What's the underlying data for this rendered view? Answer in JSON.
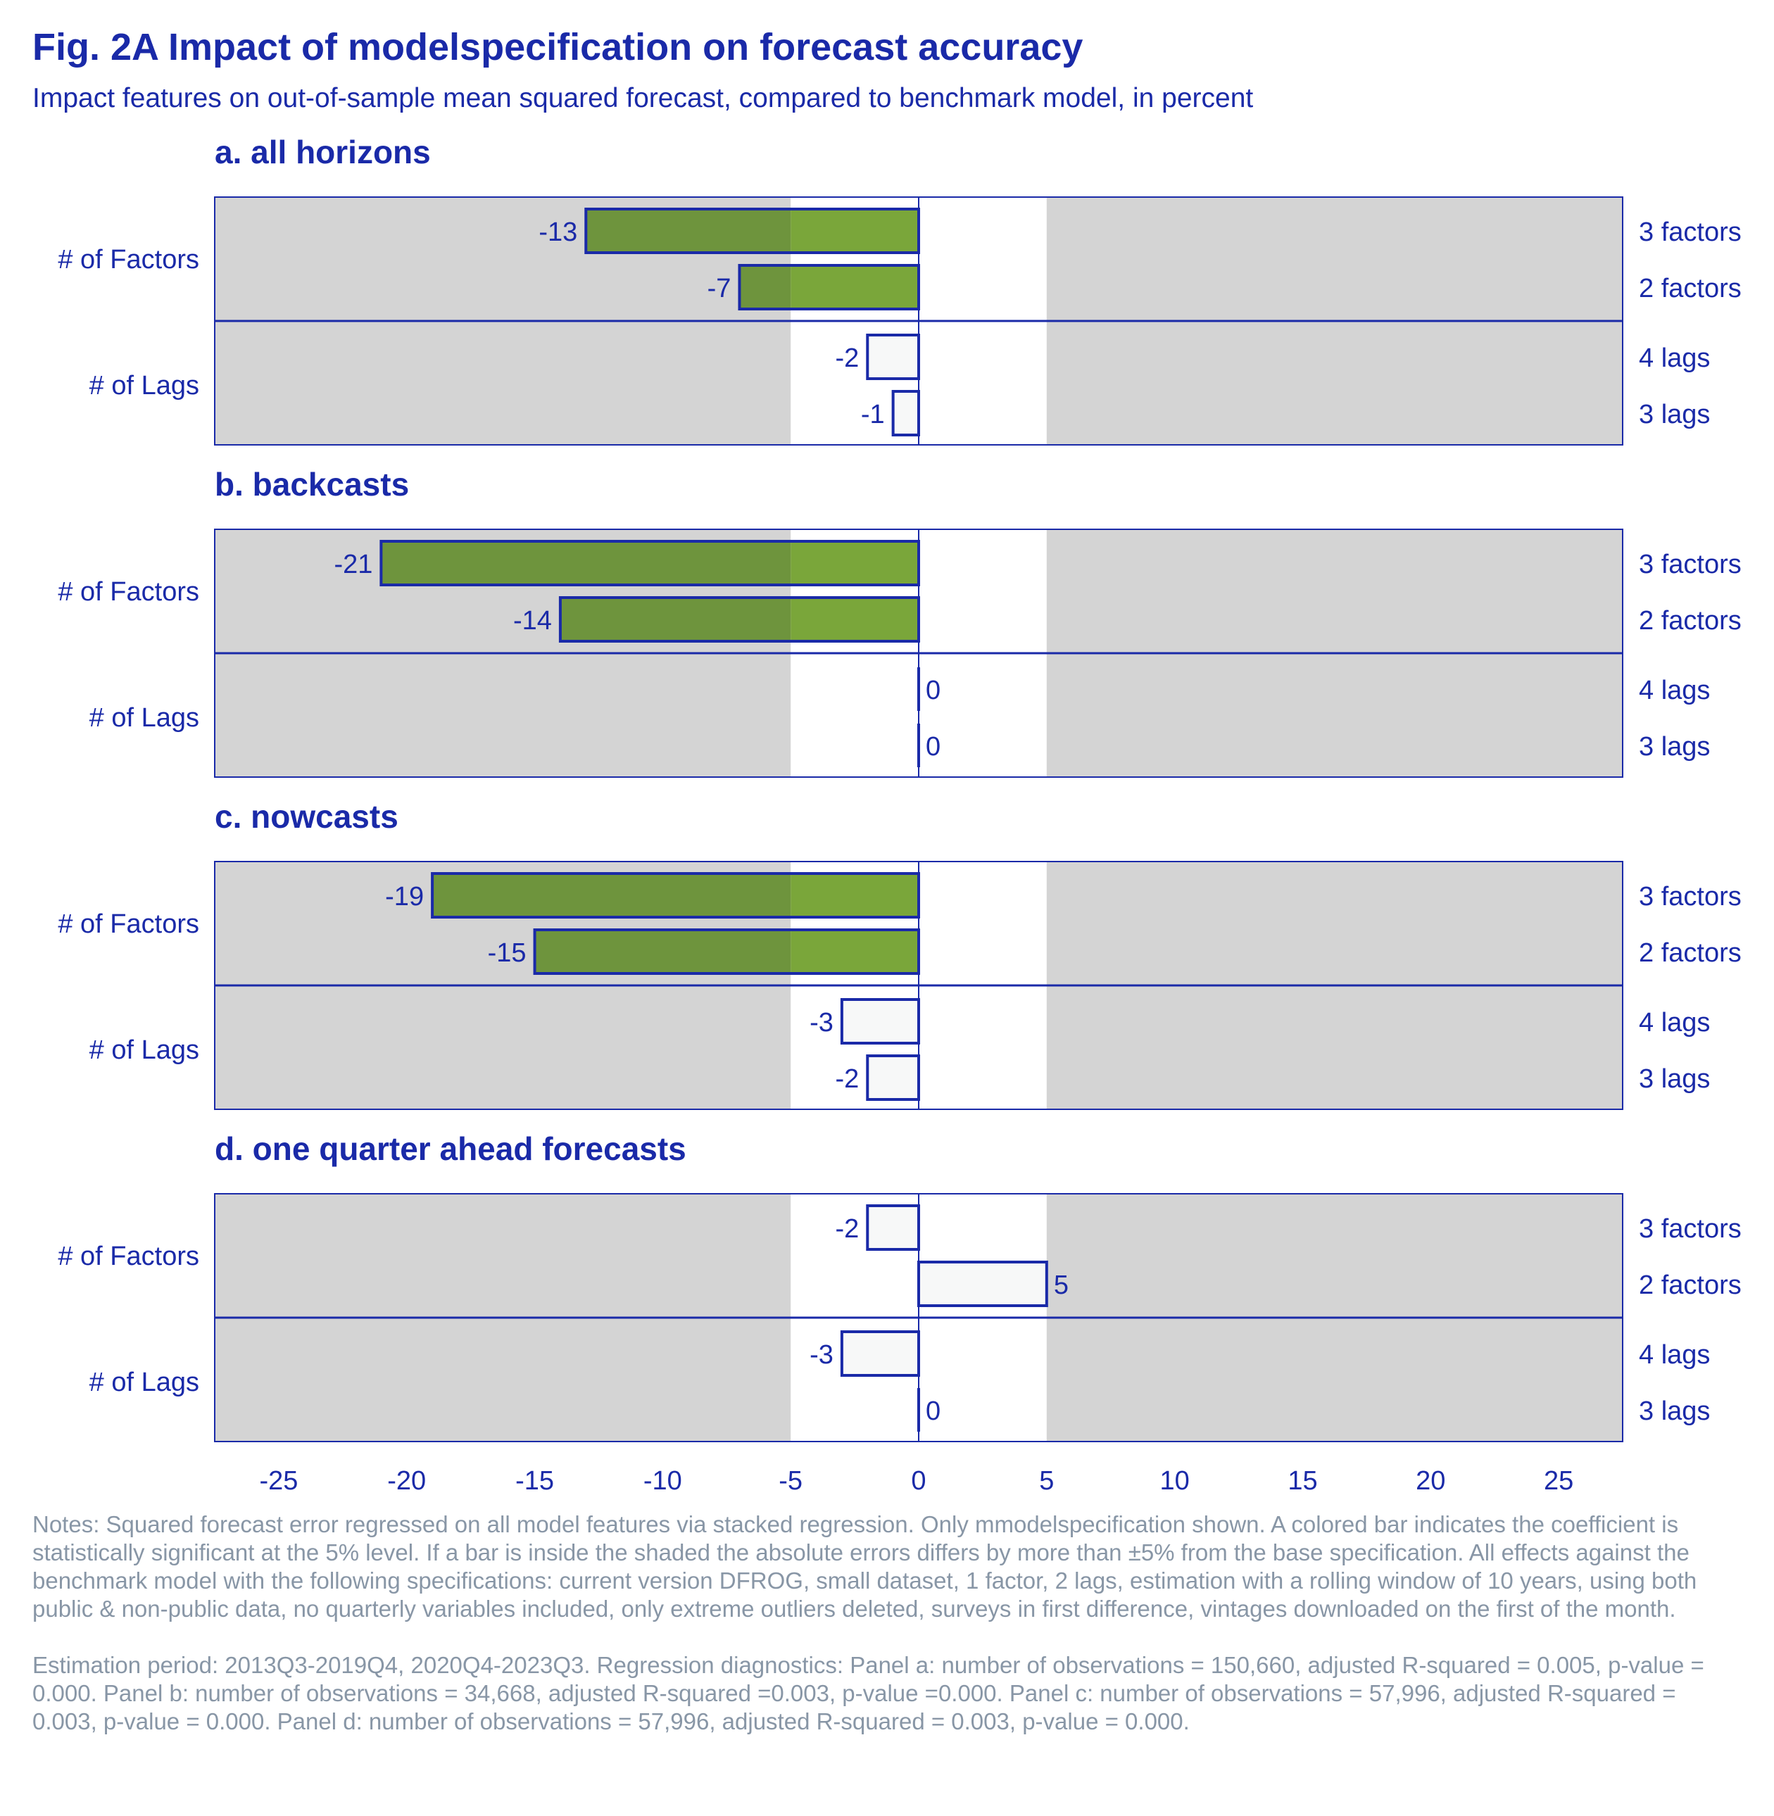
{
  "title": "Fig. 2A Impact of modelspecification on forecast accuracy",
  "subtitle": "Impact features on out-of-sample mean squared forecast, compared to benchmark model, in percent",
  "colors": {
    "text": "#1a2aa8",
    "shade": "#d4d4d4",
    "significant_bar": "#7aa63a",
    "significant_bar_in_shade": "#6e943d",
    "insignificant_bar": "#f7f8f8",
    "bar_outline": "#1a2aa8",
    "notes": "#8896a6"
  },
  "chart_data": [
    {
      "type": "bar",
      "orientation": "horizontal",
      "title": "a. all horizons",
      "groups": [
        {
          "label": "# of Factors",
          "bars": [
            {
              "label": "3 factors",
              "value": -13,
              "significant": true
            },
            {
              "label": "2 factors",
              "value": -7,
              "significant": true
            }
          ]
        },
        {
          "label": "# of Lags",
          "bars": [
            {
              "label": "4 lags",
              "value": -2,
              "significant": false
            },
            {
              "label": "3 lags",
              "value": -1,
              "significant": false
            }
          ]
        }
      ],
      "xlim": [
        -27.5,
        27.5
      ],
      "shaded_region": "outside -5 to 5"
    },
    {
      "type": "bar",
      "orientation": "horizontal",
      "title": "b. backcasts",
      "groups": [
        {
          "label": "# of Factors",
          "bars": [
            {
              "label": "3 factors",
              "value": -21,
              "significant": true
            },
            {
              "label": "2 factors",
              "value": -14,
              "significant": true
            }
          ]
        },
        {
          "label": "# of Lags",
          "bars": [
            {
              "label": "4 lags",
              "value": 0,
              "significant": false
            },
            {
              "label": "3 lags",
              "value": 0,
              "significant": false
            }
          ]
        }
      ],
      "xlim": [
        -27.5,
        27.5
      ],
      "shaded_region": "outside -5 to 5"
    },
    {
      "type": "bar",
      "orientation": "horizontal",
      "title": "c. nowcasts",
      "groups": [
        {
          "label": "# of Factors",
          "bars": [
            {
              "label": "3 factors",
              "value": -19,
              "significant": true
            },
            {
              "label": "2 factors",
              "value": -15,
              "significant": true
            }
          ]
        },
        {
          "label": "# of Lags",
          "bars": [
            {
              "label": "4 lags",
              "value": -3,
              "significant": false
            },
            {
              "label": "3 lags",
              "value": -2,
              "significant": false
            }
          ]
        }
      ],
      "xlim": [
        -27.5,
        27.5
      ],
      "shaded_region": "outside -5 to 5"
    },
    {
      "type": "bar",
      "orientation": "horizontal",
      "title": "d. one quarter ahead forecasts",
      "groups": [
        {
          "label": "# of Factors",
          "bars": [
            {
              "label": "3 factors",
              "value": -2,
              "significant": false
            },
            {
              "label": "2 factors",
              "value": 5,
              "significant": false
            }
          ]
        },
        {
          "label": "# of Lags",
          "bars": [
            {
              "label": "4 lags",
              "value": -3,
              "significant": false
            },
            {
              "label": "3 lags",
              "value": 0,
              "significant": false
            }
          ]
        }
      ],
      "xlim": [
        -27.5,
        27.5
      ],
      "xticks": [
        -25,
        -20,
        -15,
        -10,
        -5,
        0,
        5,
        10,
        15,
        20,
        25
      ],
      "shaded_region": "outside -5 to 5"
    }
  ],
  "notes": [
    "Notes: Squared forecast error regressed on all model features via stacked regression. Only mmodelspecification shown. A colored bar indicates the coefficient is statistically significant at the 5% level. If a bar is inside the shaded the absolute errors differs by more than ±5% from the base specification. All effects against the benchmark model with the following specifications: current version DFROG, small dataset, 1 factor, 2 lags, estimation with a rolling window of 10 years, using both public & non-public data, no quarterly variables included, only extreme outliers deleted, surveys in first difference, vintages downloaded on the first of the month.",
    "Estimation period: 2013Q3-2019Q4, 2020Q4-2023Q3. Regression diagnostics: Panel a: number of observations = 150,660, adjusted R-squared = 0.005, p-value = 0.000. Panel b: number of observations = 34,668, adjusted R-squared =0.003, p-value =0.000. Panel c: number of observations = 57,996, adjusted R-squared = 0.003, p-value = 0.000. Panel d: number of observations = 57,996, adjusted R-squared = 0.003, p-value = 0.000."
  ]
}
